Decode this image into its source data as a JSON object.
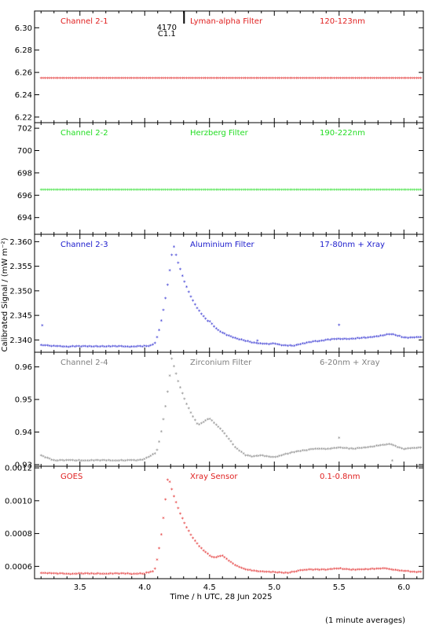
{
  "figure": {
    "xlabel": "Time / h UTC, 28 Jun 2025",
    "ylabel": "Calibrated Signal / (mW m⁻²)",
    "footnote": "(1 minute averages)",
    "flare": {
      "id": "4170",
      "class": "C1.1",
      "time": 4.17
    }
  },
  "chart_data": [
    {
      "type": "scatter",
      "panel": "channel-2-1",
      "labels": [
        "Channel 2-1",
        "Lyman-alpha Filter",
        "120-123nm"
      ],
      "color": "#e02020",
      "xlim": [
        3.15,
        6.15
      ],
      "xticks": [
        3.5,
        4.0,
        4.5,
        5.0,
        5.5,
        6.0
      ],
      "ylim": [
        6.215,
        6.315
      ],
      "yticks": [
        "6.22",
        "6.24",
        "6.26",
        "6.28",
        "6.30"
      ],
      "profile": "flat",
      "baseline": 6.254,
      "baseline_series": [
        [
          3.15,
          6.254
        ],
        [
          6.15,
          6.254
        ]
      ]
    },
    {
      "type": "scatter",
      "panel": "channel-2-2",
      "labels": [
        "Channel 2-2",
        "Herzberg Filter",
        "190-222nm"
      ],
      "color": "#22dd22",
      "xlim": [
        3.15,
        6.15
      ],
      "xticks": [
        3.5,
        4.0,
        4.5,
        5.0,
        5.5,
        6.0
      ],
      "ylim": [
        692.5,
        702.5
      ],
      "yticks": [
        "694",
        "696",
        "698",
        "700",
        "702"
      ],
      "profile": "flat",
      "baseline": 696.4,
      "baseline_series": [
        [
          3.15,
          696.4
        ],
        [
          6.15,
          696.4
        ]
      ]
    },
    {
      "type": "scatter",
      "panel": "channel-2-3",
      "labels": [
        "Channel 2-3",
        "Aluminium Filter",
        "17-80nm + Xray"
      ],
      "color": "#1a1acc",
      "xlim": [
        3.15,
        6.15
      ],
      "xticks": [
        3.5,
        4.0,
        4.5,
        5.0,
        5.5,
        6.0
      ],
      "ylim": [
        2.3375,
        2.3615
      ],
      "yticks": [
        "2.340",
        "2.345",
        "2.350",
        "2.355",
        "2.360"
      ],
      "profile": "flare",
      "baseline": 2.3385,
      "peak": 2.3593,
      "peak_time": 4.22,
      "baseline_series": [
        [
          3.15,
          2.3388
        ],
        [
          3.2,
          2.3388
        ],
        [
          3.3,
          2.3385
        ],
        [
          3.4,
          2.3379
        ],
        [
          3.5,
          2.3377
        ],
        [
          3.6,
          2.3378
        ],
        [
          3.7,
          2.3377
        ],
        [
          3.8,
          2.3376
        ],
        [
          3.9,
          2.3377
        ],
        [
          4.0,
          2.3381
        ],
        [
          4.05,
          2.3387
        ],
        [
          4.5,
          2.3436
        ],
        [
          4.6,
          2.3406
        ],
        [
          4.7,
          2.3388
        ],
        [
          4.8,
          2.3386
        ],
        [
          4.9,
          2.3387
        ],
        [
          5.0,
          2.3391
        ],
        [
          5.1,
          2.3384
        ],
        [
          5.2,
          2.3389
        ],
        [
          5.3,
          2.3395
        ],
        [
          5.4,
          2.3398
        ],
        [
          5.5,
          2.34
        ],
        [
          5.6,
          2.3401
        ],
        [
          5.7,
          2.3402
        ],
        [
          5.8,
          2.3406
        ],
        [
          5.9,
          2.341
        ],
        [
          6.0,
          2.3403
        ],
        [
          6.15,
          2.3404
        ]
      ]
    },
    {
      "type": "scatter",
      "panel": "channel-2-4",
      "labels": [
        "Channel 2-4",
        "Zirconium Filter",
        "6-20nm + Xray"
      ],
      "color": "#808080",
      "xlim": [
        3.15,
        6.15
      ],
      "xticks": [
        3.5,
        4.0,
        4.5,
        5.0,
        5.5,
        6.0
      ],
      "ylim": [
        0.9295,
        0.9645
      ],
      "yticks": [
        "0.93",
        "0.94",
        "0.95",
        "0.96"
      ],
      "profile": "flare",
      "baseline": 0.931,
      "peak": 0.9625,
      "peak_time": 4.21,
      "baseline_series": [
        [
          3.15,
          0.9335
        ],
        [
          3.2,
          0.9325
        ],
        [
          3.3,
          0.931
        ],
        [
          3.4,
          0.9305
        ],
        [
          3.5,
          0.9305
        ],
        [
          3.6,
          0.9306
        ],
        [
          3.7,
          0.9307
        ],
        [
          3.8,
          0.9305
        ],
        [
          3.9,
          0.9305
        ],
        [
          4.0,
          0.9315
        ],
        [
          4.05,
          0.9325
        ],
        [
          4.5,
          0.944
        ],
        [
          4.6,
          0.94
        ],
        [
          4.7,
          0.935
        ],
        [
          4.8,
          0.932
        ],
        [
          4.9,
          0.9325
        ],
        [
          5.0,
          0.932
        ],
        [
          5.1,
          0.933
        ],
        [
          5.2,
          0.934
        ],
        [
          5.3,
          0.9345
        ],
        [
          5.4,
          0.9345
        ],
        [
          5.5,
          0.935
        ],
        [
          5.6,
          0.9345
        ],
        [
          5.7,
          0.935
        ],
        [
          5.8,
          0.9355
        ],
        [
          5.9,
          0.936
        ],
        [
          6.0,
          0.9345
        ],
        [
          6.15,
          0.935
        ]
      ]
    },
    {
      "type": "scatter",
      "panel": "goes",
      "labels": [
        "GOES",
        "Xray Sensor",
        "0.1-0.8nm"
      ],
      "color": "#e02020",
      "xlim": [
        3.15,
        6.15
      ],
      "xticks": [
        3.5,
        4.0,
        4.5,
        5.0,
        5.5,
        6.0
      ],
      "ylim": [
        0.000525,
        0.00121
      ],
      "yticks": [
        "0.0006",
        "0.0008",
        "0.0010",
        "0.0012"
      ],
      "profile": "flare",
      "baseline": 0.00055,
      "peak": 0.00115,
      "peak_time": 4.18,
      "baseline_series": [
        [
          3.15,
          0.000558
        ],
        [
          3.3,
          0.00055
        ],
        [
          3.5,
          0.000545
        ],
        [
          3.7,
          0.000545
        ],
        [
          3.9,
          0.000545
        ],
        [
          4.0,
          0.00055
        ],
        [
          4.05,
          0.00056
        ],
        [
          4.6,
          0.00066
        ],
        [
          4.7,
          0.0006
        ],
        [
          4.8,
          0.000565
        ],
        [
          4.9,
          0.00055
        ],
        [
          5.0,
          0.00055
        ],
        [
          5.1,
          0.000555
        ],
        [
          5.2,
          0.00057
        ],
        [
          5.3,
          0.000575
        ],
        [
          5.4,
          0.000575
        ],
        [
          5.5,
          0.00058
        ],
        [
          5.6,
          0.000575
        ],
        [
          5.7,
          0.000575
        ],
        [
          5.8,
          0.00058
        ],
        [
          5.85,
          0.000585
        ],
        [
          5.9,
          0.000575
        ],
        [
          6.0,
          0.000565
        ],
        [
          6.15,
          0.00056
        ]
      ]
    }
  ]
}
